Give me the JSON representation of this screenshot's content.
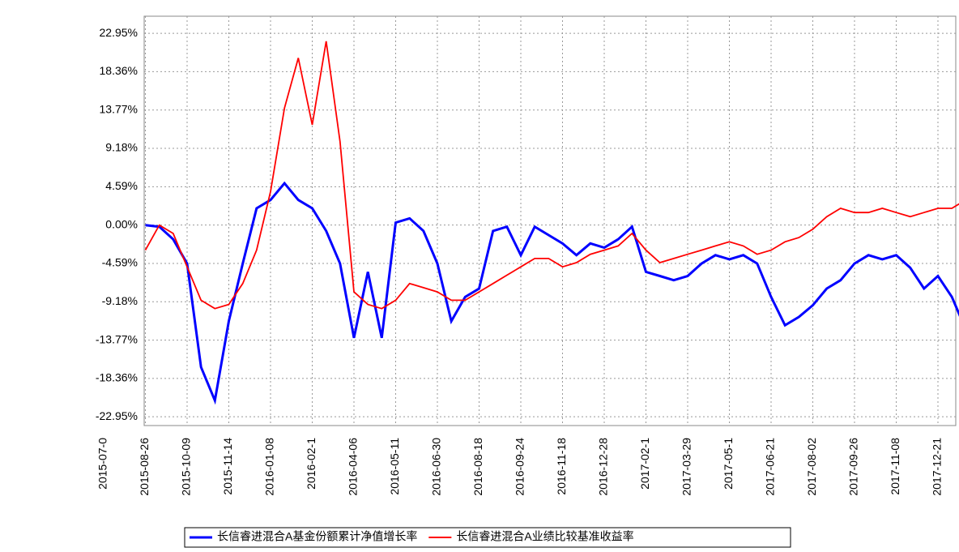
{
  "chart_data": {
    "type": "line",
    "categories": [
      "2015-07-0",
      null,
      null,
      "2015-08-26",
      null,
      null,
      "2015-10-09",
      null,
      null,
      "2015-11-14",
      null,
      null,
      "2016-01-08",
      null,
      null,
      "2016-02-1",
      null,
      null,
      "2016-04-06",
      null,
      null,
      "2016-05-11",
      null,
      null,
      "2016-06-30",
      null,
      null,
      "2016-08-18",
      null,
      null,
      "2016-09-24",
      null,
      null,
      "2016-11-18",
      null,
      null,
      "2016-12-28",
      null,
      null,
      "2017-02-1",
      null,
      null,
      "2017-03-29",
      null,
      null,
      "2017-05-1",
      null,
      null,
      "2017-06-21",
      null,
      null,
      "2017-08-02",
      null,
      null,
      "2017-09-26",
      null,
      null,
      "2017-11-08",
      null,
      null,
      "2017-12-21",
      null,
      null
    ],
    "series": [
      {
        "name": "长信睿进混合A基金份额累计净值增长率",
        "color": "#0000ff",
        "values": [
          null,
          null,
          null,
          0,
          -0.2,
          -1.7,
          -4.6,
          -17,
          -21,
          -11.5,
          -4.6,
          2,
          3,
          5,
          3,
          2,
          -0.7,
          -4.6,
          -13.5,
          -5.6,
          -13.5,
          0.3,
          0.8,
          -0.7,
          -4.6,
          -11.5,
          -8.6,
          -7.6,
          -0.7,
          -0.2,
          -3.6,
          -0.2,
          -1.2,
          -2.2,
          -3.6,
          -2.2,
          -2.7,
          -1.7,
          -0.2,
          -5.6,
          -6.1,
          -6.6,
          -6.1,
          -4.6,
          -3.6,
          -4.1,
          -3.6,
          -4.6,
          -8.6,
          -12,
          -11,
          -9.6,
          -7.6,
          -6.6,
          -4.6,
          -3.6,
          -4.1,
          -3.6,
          -5.1,
          -7.6,
          -6.1,
          -8.6,
          -12.5
        ]
      },
      {
        "name": "长信睿进混合A业绩比较基准收益率",
        "color": "#ff0000",
        "values": [
          null,
          null,
          null,
          -3,
          0,
          -1,
          -5,
          -9,
          -10,
          -9.5,
          -7,
          -3,
          4,
          14,
          20,
          12,
          22,
          10,
          -8,
          -9.5,
          -10,
          -9,
          -7,
          -7.5,
          -8,
          -9,
          -9,
          -8,
          -7,
          -6,
          -5,
          -4,
          -4,
          -5,
          -4.5,
          -3.5,
          -3,
          -2.5,
          -1,
          -3,
          -4.5,
          -4,
          -3.5,
          -3,
          -2.5,
          -2,
          -2.5,
          -3.5,
          -3,
          -2,
          -1.5,
          -0.5,
          1,
          2,
          1.5,
          1.5,
          2,
          1.5,
          1,
          1.5,
          2,
          2,
          3
        ]
      }
    ],
    "ylim": [
      -24,
      25
    ],
    "yticks": [
      {
        "value": -22.95,
        "label": "-22.95%"
      },
      {
        "value": -18.36,
        "label": "-18.36%"
      },
      {
        "value": -13.77,
        "label": "-13.77%"
      },
      {
        "value": -9.18,
        "label": "-9.18%"
      },
      {
        "value": -4.59,
        "label": "-4.59%"
      },
      {
        "value": 0,
        "label": "0.00%"
      },
      {
        "value": 4.59,
        "label": "4.59%"
      },
      {
        "value": 9.18,
        "label": "9.18%"
      },
      {
        "value": 13.77,
        "label": "13.77%"
      },
      {
        "value": 18.36,
        "label": "18.36%"
      },
      {
        "value": 22.95,
        "label": "22.95%"
      }
    ],
    "grid": true
  }
}
